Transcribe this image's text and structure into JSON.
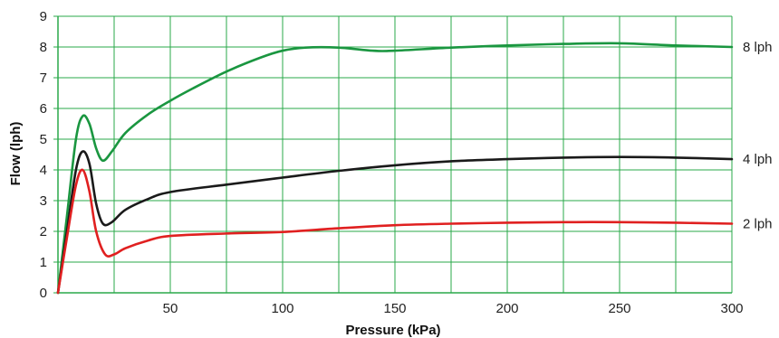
{
  "chart_data": {
    "type": "line",
    "title": "",
    "xlabel": "Pressure (kPa)",
    "ylabel": "Flow (lph)",
    "xlim": [
      0,
      300
    ],
    "ylim": [
      0,
      9
    ],
    "x_ticks": [
      50,
      100,
      150,
      200,
      250,
      300
    ],
    "y_ticks": [
      0,
      1,
      2,
      3,
      4,
      5,
      6,
      7,
      8,
      9
    ],
    "x_grid_step": 25,
    "y_grid_step": 1,
    "grid": true,
    "grid_color": "#2aa84a",
    "axis_color": "#2aa84a",
    "series": [
      {
        "name": "8 lph",
        "color": "#1a9640",
        "points": [
          [
            0,
            0
          ],
          [
            4,
            2.5
          ],
          [
            8,
            5.0
          ],
          [
            11,
            5.75
          ],
          [
            14,
            5.5
          ],
          [
            17,
            4.7
          ],
          [
            20,
            4.3
          ],
          [
            24,
            4.6
          ],
          [
            30,
            5.2
          ],
          [
            40,
            5.8
          ],
          [
            50,
            6.25
          ],
          [
            60,
            6.65
          ],
          [
            75,
            7.2
          ],
          [
            90,
            7.65
          ],
          [
            100,
            7.88
          ],
          [
            110,
            7.98
          ],
          [
            125,
            7.98
          ],
          [
            140,
            7.88
          ],
          [
            150,
            7.88
          ],
          [
            175,
            7.98
          ],
          [
            200,
            8.05
          ],
          [
            225,
            8.1
          ],
          [
            250,
            8.12
          ],
          [
            275,
            8.05
          ],
          [
            300,
            8.0
          ]
        ]
      },
      {
        "name": "4 lph",
        "color": "#1a1a1a",
        "points": [
          [
            0,
            0
          ],
          [
            4,
            2.0
          ],
          [
            8,
            4.0
          ],
          [
            11,
            4.6
          ],
          [
            14,
            4.2
          ],
          [
            17,
            2.9
          ],
          [
            20,
            2.25
          ],
          [
            24,
            2.3
          ],
          [
            30,
            2.7
          ],
          [
            40,
            3.05
          ],
          [
            50,
            3.28
          ],
          [
            75,
            3.52
          ],
          [
            100,
            3.75
          ],
          [
            125,
            3.97
          ],
          [
            150,
            4.15
          ],
          [
            175,
            4.28
          ],
          [
            200,
            4.35
          ],
          [
            225,
            4.4
          ],
          [
            250,
            4.42
          ],
          [
            275,
            4.4
          ],
          [
            300,
            4.35
          ]
        ]
      },
      {
        "name": "2 lph",
        "color": "#e02020",
        "points": [
          [
            0,
            0
          ],
          [
            4,
            1.8
          ],
          [
            8,
            3.5
          ],
          [
            11,
            4.0
          ],
          [
            14,
            3.3
          ],
          [
            17,
            2.0
          ],
          [
            21,
            1.25
          ],
          [
            25,
            1.25
          ],
          [
            30,
            1.45
          ],
          [
            40,
            1.7
          ],
          [
            50,
            1.85
          ],
          [
            75,
            1.93
          ],
          [
            100,
            1.98
          ],
          [
            125,
            2.1
          ],
          [
            150,
            2.2
          ],
          [
            175,
            2.25
          ],
          [
            200,
            2.28
          ],
          [
            225,
            2.3
          ],
          [
            250,
            2.3
          ],
          [
            275,
            2.28
          ],
          [
            300,
            2.25
          ]
        ]
      }
    ]
  }
}
